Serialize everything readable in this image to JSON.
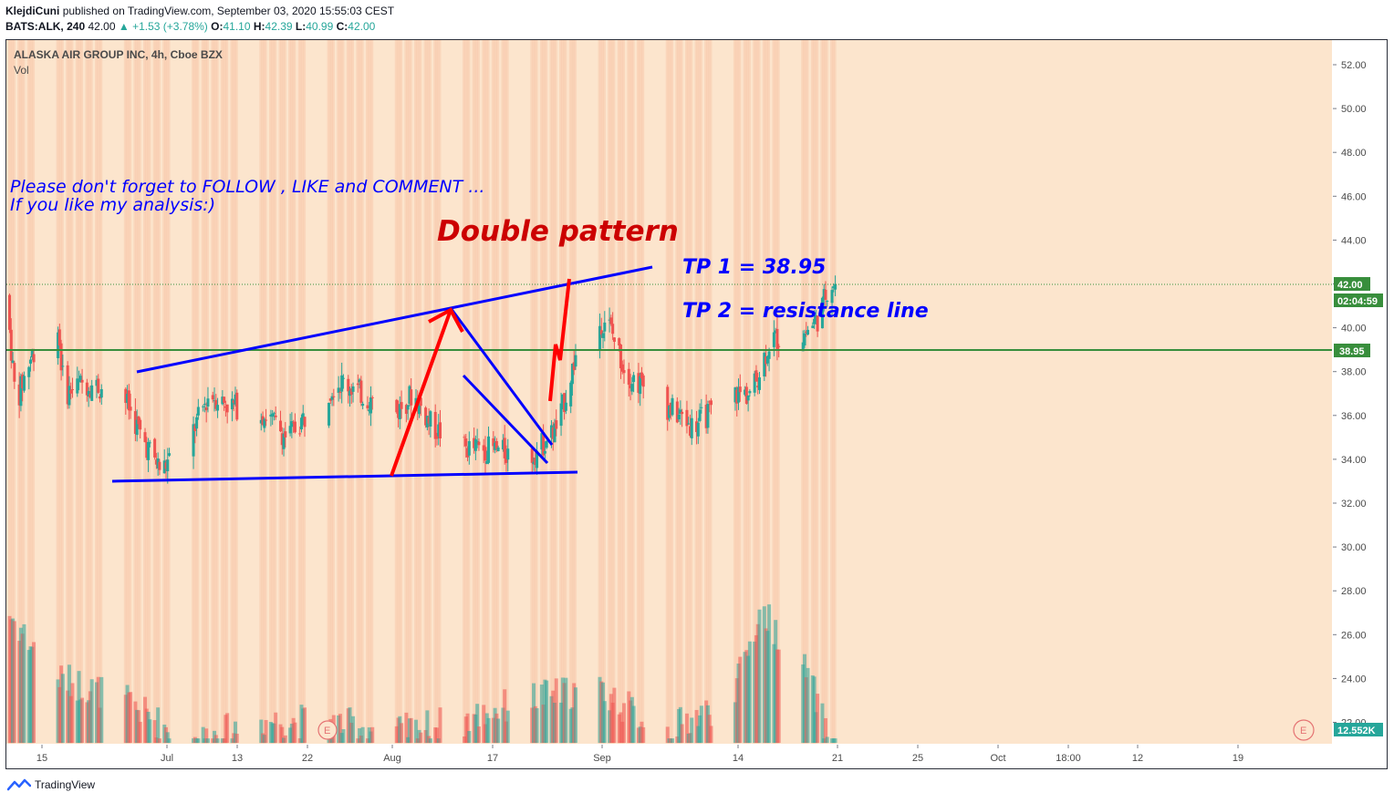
{
  "header": {
    "author": "KlejdiCuni",
    "published_text": "published on TradingView.com, September 03, 2020 15:55:03 CEST",
    "symbol": "BATS:ALK, 240",
    "last": "42.00",
    "change": "+1.53 (+3.78%)",
    "open_label": "O:",
    "open": "41.10",
    "high_label": "H:",
    "high": "42.39",
    "low_label": "L:",
    "low": "40.99",
    "close_label": "C:",
    "close": "42.00"
  },
  "legend": {
    "title": "ALASKA AIR GROUP INC, 4h, Cboe BZX",
    "volume_label": "Vol"
  },
  "annotations": {
    "follow_line1": "Please don't forget  to FOLLOW , LIKE and COMMENT ...",
    "follow_line2": "If you like my analysis:)",
    "pattern_title": "Double pattern",
    "tp1": "TP 1 = 38.95",
    "tp2": "TP 2 =  resistance line"
  },
  "price_axis": {
    "ticks": [
      "52.00",
      "50.00",
      "48.00",
      "46.00",
      "44.00",
      "42.00",
      "40.00",
      "38.00",
      "36.00",
      "34.00",
      "32.00",
      "30.00",
      "28.00",
      "26.00",
      "24.00",
      "22.00"
    ],
    "last_price_label": "42.00",
    "countdown_label": "02:04:59",
    "level_label": "38.95",
    "volume_label": "12.552K"
  },
  "time_axis": {
    "ticks": [
      "15",
      "Jul",
      "13",
      "22",
      "Aug",
      "17",
      "Sep",
      "14",
      "21",
      "25",
      "Oct",
      "18:00",
      "12",
      "19"
    ]
  },
  "earnings_marker": "E",
  "footer": {
    "brand": "TradingView"
  },
  "colors": {
    "background": "#fce5cd",
    "up": "#26a69a",
    "down": "#ef5350",
    "trendline": "#0000ff",
    "arrow": "#ff0000",
    "level": "#388e3c",
    "last_price": "#388e3c"
  },
  "chart_data": {
    "type": "candlestick",
    "title": "ALASKA AIR GROUP INC, 4h, Cboe BZX",
    "x_range": [
      "2020-06-10",
      "2020-10-25"
    ],
    "ylim": [
      21,
      53
    ],
    "grid": false,
    "price_path": [
      {
        "date": "2020-06-10",
        "price": 41.5
      },
      {
        "date": "2020-06-11",
        "price": 36.5
      },
      {
        "date": "2020-06-12",
        "price": 38.0
      },
      {
        "date": "2020-06-15",
        "price": 41.5
      },
      {
        "date": "2020-06-16",
        "price": 37.0
      },
      {
        "date": "2020-06-18",
        "price": 37.5
      },
      {
        "date": "2020-06-22",
        "price": 37.0
      },
      {
        "date": "2020-06-24",
        "price": 35.0
      },
      {
        "date": "2020-06-26",
        "price": 33.5
      },
      {
        "date": "2020-06-29",
        "price": 35.0
      },
      {
        "date": "2020-07-01",
        "price": 37.0
      },
      {
        "date": "2020-07-03",
        "price": 36.5
      },
      {
        "date": "2020-07-07",
        "price": 36.0
      },
      {
        "date": "2020-07-09",
        "price": 35.0
      },
      {
        "date": "2020-07-14",
        "price": 37.5
      },
      {
        "date": "2020-07-15",
        "price": 37.5
      },
      {
        "date": "2020-07-20",
        "price": 36.0
      },
      {
        "date": "2020-07-22",
        "price": 37.0
      },
      {
        "date": "2020-07-24",
        "price": 35.5
      },
      {
        "date": "2020-07-27",
        "price": 34.5
      },
      {
        "date": "2020-07-30",
        "price": 34.5
      },
      {
        "date": "2020-08-03",
        "price": 34.0
      },
      {
        "date": "2020-08-06",
        "price": 35.5
      },
      {
        "date": "2020-08-08",
        "price": 39.0
      },
      {
        "date": "2020-08-11",
        "price": 40.5
      },
      {
        "date": "2020-08-13",
        "price": 38.0
      },
      {
        "date": "2020-08-17",
        "price": 36.5
      },
      {
        "date": "2020-08-20",
        "price": 35.5
      },
      {
        "date": "2020-08-24",
        "price": 37.0
      },
      {
        "date": "2020-08-26",
        "price": 37.0
      },
      {
        "date": "2020-08-28",
        "price": 39.5
      },
      {
        "date": "2020-08-31",
        "price": 39.5
      },
      {
        "date": "2020-09-02",
        "price": 40.5
      },
      {
        "date": "2020-09-03",
        "price": 42.0
      }
    ],
    "volume_profile": [
      {
        "date": "2020-06-10",
        "value": 27
      },
      {
        "date": "2020-06-15",
        "value": 24
      },
      {
        "date": "2020-06-22",
        "value": 23
      },
      {
        "date": "2020-06-29",
        "value": 21
      },
      {
        "date": "2020-07-06",
        "value": 22
      },
      {
        "date": "2020-07-13",
        "value": 22
      },
      {
        "date": "2020-07-20",
        "value": 21.5
      },
      {
        "date": "2020-07-27",
        "value": 22
      },
      {
        "date": "2020-08-03",
        "value": 23
      },
      {
        "date": "2020-08-10",
        "value": 23.5
      },
      {
        "date": "2020-08-17",
        "value": 21.5
      },
      {
        "date": "2020-08-24",
        "value": 23
      },
      {
        "date": "2020-08-27",
        "value": 27
      },
      {
        "date": "2020-09-01",
        "value": 24
      },
      {
        "date": "2020-09-03",
        "value": 21
      }
    ],
    "levels": [
      {
        "price": 38.95,
        "type": "horizontal"
      },
      {
        "price": 42.0,
        "type": "last_price"
      }
    ],
    "drawings": {
      "upper_trendline": [
        {
          "date": "2020-06-21",
          "price": 38.0
        },
        {
          "date": "2020-09-06",
          "price": 42.7
        }
      ],
      "lower_trendline": [
        {
          "date": "2020-06-21",
          "price": 33.0
        },
        {
          "date": "2020-08-29",
          "price": 33.5
        }
      ],
      "flag_upper": [
        {
          "date": "2020-08-11",
          "price": 41.0
        },
        {
          "date": "2020-08-25",
          "price": 34.7
        }
      ],
      "flag_lower": [
        {
          "date": "2020-08-13",
          "price": 37.9
        },
        {
          "date": "2020-08-24",
          "price": 34.0
        }
      ],
      "arrows": [
        [
          {
            "date": "2020-08-03",
            "price": 33.2
          },
          {
            "date": "2020-08-11",
            "price": 41.0
          }
        ],
        [
          {
            "date": "2020-08-25",
            "price": 36.2
          },
          {
            "date": "2020-08-27",
            "price": 42.2
          }
        ]
      ]
    }
  }
}
